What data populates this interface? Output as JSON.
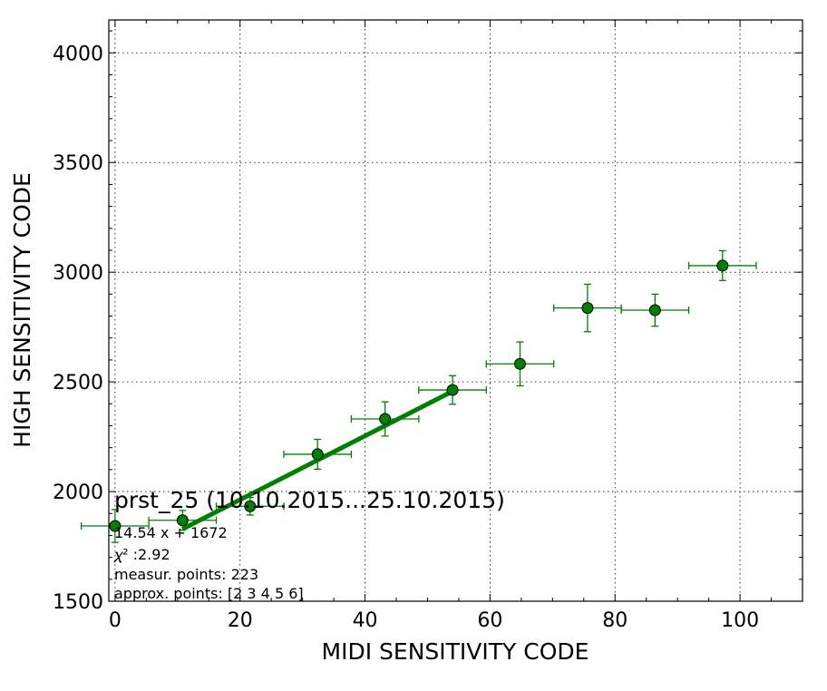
{
  "chart_data": {
    "type": "scatter",
    "title": "prst_25 (10.10.2015...25.10.2015)",
    "xlabel": "MIDI SENSITIVITY CODE",
    "ylabel": "HIGH SENSITIVITY CODE",
    "xlim": [
      -1,
      110
    ],
    "ylim": [
      1500,
      4150
    ],
    "xticks": [
      0,
      20,
      40,
      60,
      80,
      100
    ],
    "yticks": [
      1500,
      2000,
      2500,
      3000,
      3500,
      4000
    ],
    "grid": true,
    "series": [
      {
        "kind": "errorbar",
        "color": "#008000",
        "marker_color": "#008000",
        "points": [
          {
            "x": 0.0,
            "y": 1843,
            "xerr": 5.4,
            "yerr": 75
          },
          {
            "x": 10.8,
            "y": 1869,
            "xerr": 5.4,
            "yerr": 45
          },
          {
            "x": 21.6,
            "y": 1933,
            "xerr": 5.4,
            "yerr": 40
          },
          {
            "x": 32.4,
            "y": 2170,
            "xerr": 5.4,
            "yerr": 68
          },
          {
            "x": 43.2,
            "y": 2331,
            "xerr": 5.4,
            "yerr": 78
          },
          {
            "x": 54.0,
            "y": 2463,
            "xerr": 5.4,
            "yerr": 65
          },
          {
            "x": 64.8,
            "y": 2582,
            "xerr": 5.4,
            "yerr": 100
          },
          {
            "x": 75.6,
            "y": 2837,
            "xerr": 5.4,
            "yerr": 108
          },
          {
            "x": 86.4,
            "y": 2827,
            "xerr": 5.4,
            "yerr": 73
          },
          {
            "x": 97.2,
            "y": 3030,
            "xerr": 5.4,
            "yerr": 68
          }
        ]
      },
      {
        "kind": "fit-line",
        "color": "#008000",
        "slope": 14.54,
        "intercept": 1672,
        "x_range": [
          10.8,
          54.0
        ]
      }
    ],
    "annotations": [
      "14.54 x + 1672",
      "𝜒² :2.92",
      "measur. points: 223",
      "approx. points: [2 3 4 5 6]"
    ]
  }
}
